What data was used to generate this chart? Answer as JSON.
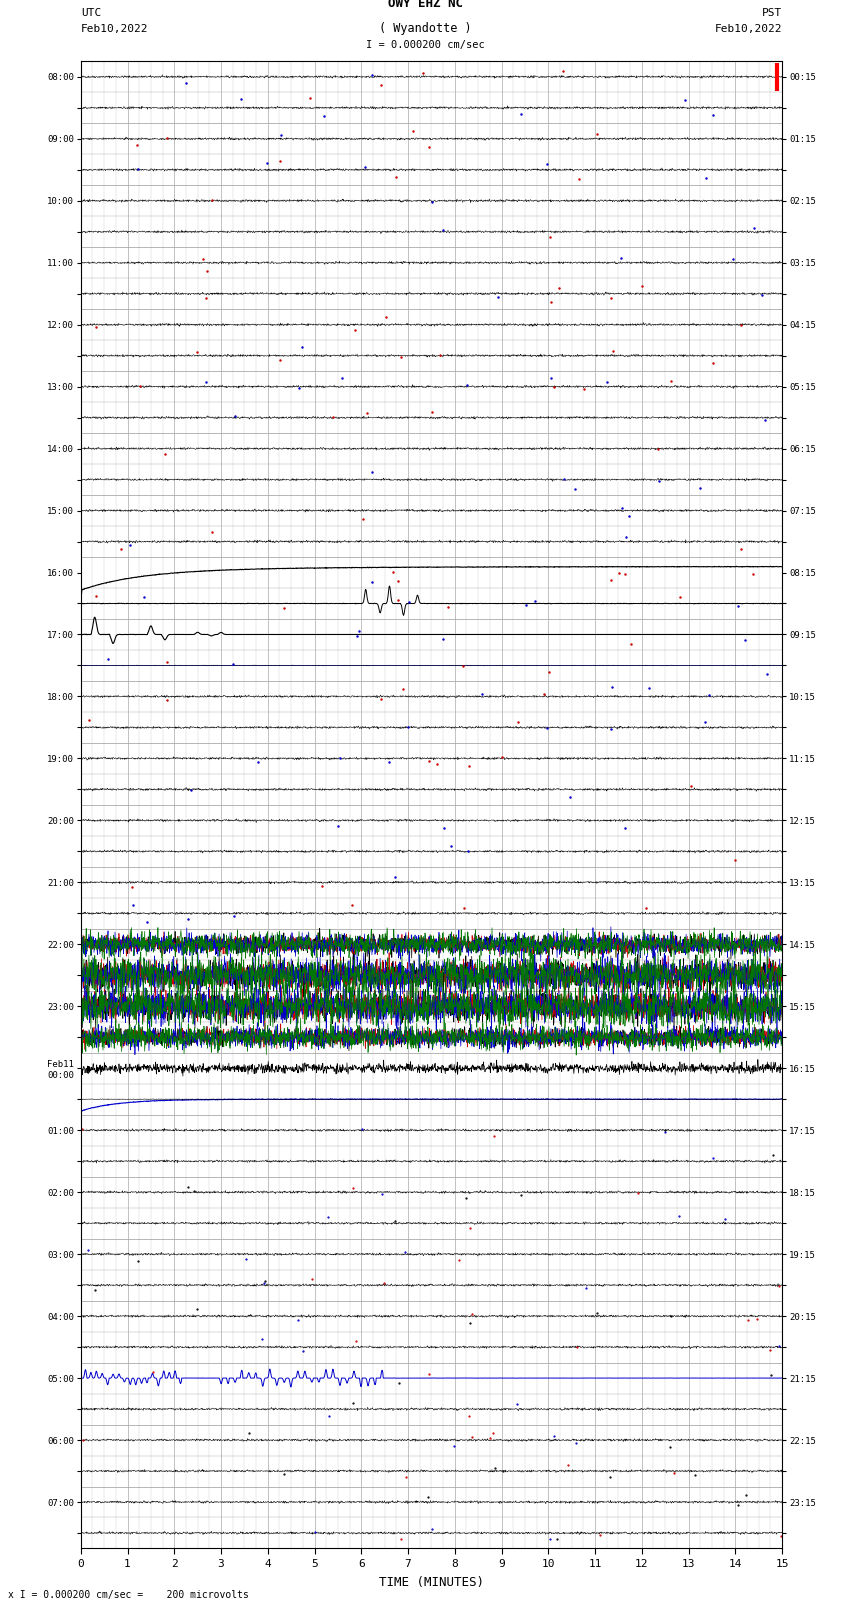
{
  "title_line1": "OWY EHZ NC",
  "title_line2": "( Wyandotte )",
  "scale_text": "I = 0.000200 cm/sec",
  "label_left_line1": "UTC",
  "label_left_line2": "Feb10,2022",
  "label_right_line1": "PST",
  "label_right_line2": "Feb10,2022",
  "xlabel": "TIME (MINUTES)",
  "bottom_note": "x I = 0.000200 cm/sec =    200 microvolts",
  "utc_labels": [
    "08:00",
    "",
    "09:00",
    "",
    "10:00",
    "",
    "11:00",
    "",
    "12:00",
    "",
    "13:00",
    "",
    "14:00",
    "",
    "15:00",
    "",
    "16:00",
    "",
    "17:00",
    "",
    "18:00",
    "",
    "19:00",
    "",
    "20:00",
    "",
    "21:00",
    "",
    "22:00",
    "",
    "23:00",
    "",
    "Feb11\n00:00",
    "",
    "01:00",
    "",
    "02:00",
    "",
    "03:00",
    "",
    "04:00",
    "",
    "05:00",
    "",
    "06:00",
    "",
    "07:00",
    ""
  ],
  "pst_labels": [
    "00:15",
    "",
    "01:15",
    "",
    "02:15",
    "",
    "03:15",
    "",
    "04:15",
    "",
    "05:15",
    "",
    "06:15",
    "",
    "07:15",
    "",
    "08:15",
    "",
    "09:15",
    "",
    "10:15",
    "",
    "11:15",
    "",
    "12:15",
    "",
    "13:15",
    "",
    "14:15",
    "",
    "15:15",
    "",
    "16:15",
    "",
    "17:15",
    "",
    "18:15",
    "",
    "19:15",
    "",
    "20:15",
    "",
    "21:15",
    "",
    "22:15",
    "",
    "23:15",
    ""
  ],
  "num_rows": 48,
  "bg_color": "#ffffff",
  "grid_color": "#aaaaaa",
  "color_black": "#000000",
  "color_red": "#cc0000",
  "color_blue": "#0000cc",
  "color_green": "#007700"
}
